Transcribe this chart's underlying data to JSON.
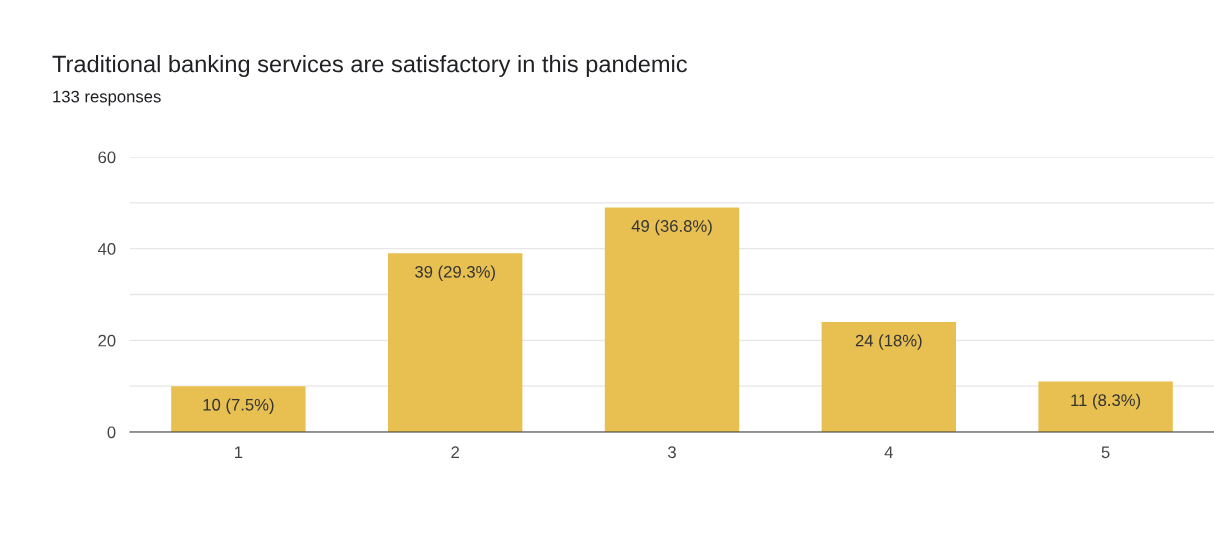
{
  "chart_data": {
    "type": "bar",
    "title": "Traditional banking services are satisfactory in this pandemic",
    "subtitle": "133 responses",
    "categories": [
      "1",
      "2",
      "3",
      "4",
      "5"
    ],
    "values": [
      10,
      39,
      49,
      24,
      11
    ],
    "value_labels": [
      "10 (7.5%)",
      "39 (29.3%)",
      "49 (36.8%)",
      "24 (18%)",
      "11 (8.3%)"
    ],
    "color": "#e8c052",
    "ylim": [
      0,
      60
    ],
    "yticks": [
      0,
      {
        "value": 10,
        "label": null
      },
      20,
      {
        "value": 30,
        "label": null
      },
      40,
      {
        "value": 50,
        "label": null
      },
      60
    ],
    "grid": "y"
  }
}
